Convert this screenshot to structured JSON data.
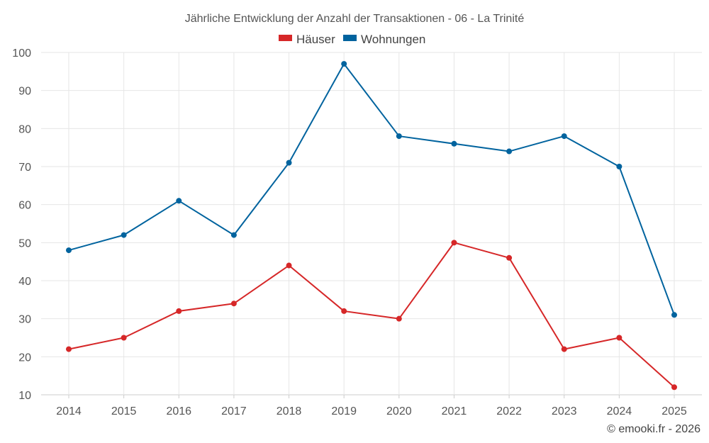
{
  "chart_data": {
    "type": "line",
    "title": "Jährliche Entwicklung der Anzahl der Transaktionen - 06 - La Trinité",
    "categories": [
      "2014",
      "2015",
      "2016",
      "2017",
      "2018",
      "2019",
      "2020",
      "2021",
      "2022",
      "2023",
      "2024",
      "2025"
    ],
    "series": [
      {
        "name": "Häuser",
        "color": "#d62728",
        "values": [
          22,
          25,
          32,
          34,
          44,
          32,
          30,
          50,
          46,
          22,
          25,
          12
        ]
      },
      {
        "name": "Wohnungen",
        "color": "#00639e",
        "values": [
          48,
          52,
          61,
          52,
          71,
          97,
          78,
          76,
          74,
          78,
          70,
          31
        ]
      }
    ],
    "ylim": [
      10,
      100
    ],
    "yticks": [
      10,
      20,
      30,
      40,
      50,
      60,
      70,
      80,
      90,
      100
    ],
    "xlabel": "",
    "ylabel": "",
    "grid": true,
    "legend": "top-center"
  },
  "footer": {
    "copyright": "© emooki.fr - 2026"
  }
}
